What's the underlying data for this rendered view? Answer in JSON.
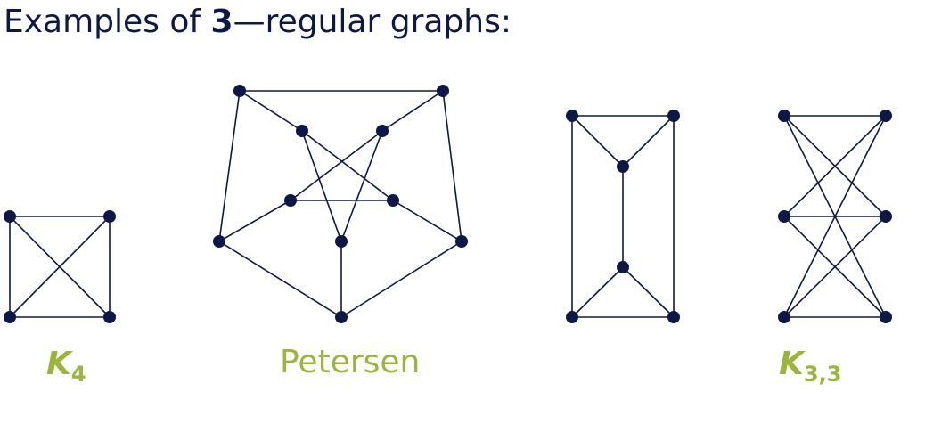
{
  "title": {
    "prefix": "Examples of ",
    "number": "3",
    "dash": "—",
    "suffix": "regular graphs:"
  },
  "colors": {
    "ink": "#0d1847",
    "accent": "#9bb53c",
    "background": "#ffffff"
  },
  "graphs": [
    {
      "id": "k4",
      "caption_main": "K",
      "caption_sub": "4",
      "vertices": [
        "a",
        "b",
        "c",
        "d"
      ],
      "edges": [
        [
          "a",
          "b"
        ],
        [
          "b",
          "d"
        ],
        [
          "d",
          "c"
        ],
        [
          "c",
          "a"
        ],
        [
          "a",
          "d"
        ],
        [
          "b",
          "c"
        ]
      ]
    },
    {
      "id": "petersen",
      "caption_main": "Petersen",
      "caption_sub": "",
      "vertices": [
        "o1",
        "o2",
        "o3",
        "o4",
        "o5",
        "i1",
        "i2",
        "i3",
        "i4",
        "i5"
      ],
      "edges": [
        [
          "o1",
          "o2"
        ],
        [
          "o2",
          "o3"
        ],
        [
          "o3",
          "o4"
        ],
        [
          "o4",
          "o5"
        ],
        [
          "o5",
          "o1"
        ],
        [
          "o1",
          "i1"
        ],
        [
          "o2",
          "i2"
        ],
        [
          "o3",
          "i3"
        ],
        [
          "o4",
          "i4"
        ],
        [
          "o5",
          "i5"
        ],
        [
          "i1",
          "i4"
        ],
        [
          "i2",
          "i5"
        ],
        [
          "i3",
          "i1"
        ],
        [
          "i4",
          "i2"
        ],
        [
          "i5",
          "i3"
        ]
      ]
    },
    {
      "id": "prism",
      "caption_main": "",
      "caption_sub": "",
      "vertices": [
        "tl",
        "tr",
        "tm",
        "bm",
        "bl",
        "br"
      ],
      "edges": [
        [
          "tl",
          "tr"
        ],
        [
          "tl",
          "tm"
        ],
        [
          "tr",
          "tm"
        ],
        [
          "tl",
          "bl"
        ],
        [
          "tr",
          "br"
        ],
        [
          "tm",
          "bm"
        ],
        [
          "bl",
          "br"
        ],
        [
          "bl",
          "bm"
        ],
        [
          "br",
          "bm"
        ]
      ]
    },
    {
      "id": "k33",
      "caption_main": "K",
      "caption_sub": "3,3",
      "vertices": [
        "l1",
        "l2",
        "l3",
        "r1",
        "r2",
        "r3"
      ],
      "edges": [
        [
          "l1",
          "r1"
        ],
        [
          "l1",
          "r2"
        ],
        [
          "l1",
          "r3"
        ],
        [
          "l2",
          "r1"
        ],
        [
          "l2",
          "r2"
        ],
        [
          "l2",
          "r3"
        ],
        [
          "l3",
          "r1"
        ],
        [
          "l3",
          "r2"
        ],
        [
          "l3",
          "r3"
        ]
      ]
    }
  ]
}
